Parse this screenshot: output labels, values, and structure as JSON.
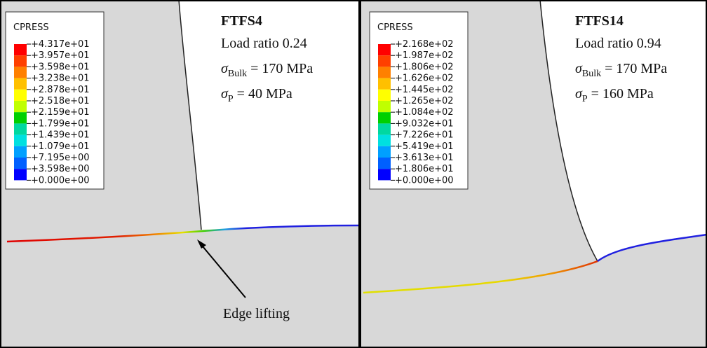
{
  "panels": [
    {
      "legend_title": "CPRESS",
      "legend_labels": [
        "+4.317e+01",
        "+3.957e+01",
        "+3.598e+01",
        "+3.238e+01",
        "+2.878e+01",
        "+2.518e+01",
        "+2.159e+01",
        "+1.799e+01",
        "+1.439e+01",
        "+1.079e+01",
        "+7.195e+00",
        "+3.598e+00",
        "+0.000e+00"
      ],
      "title": "FTFS4",
      "load_ratio": "Load ratio 0.24",
      "sigma_bulk": {
        "symbol": "σ",
        "subscript": "Bulk",
        "rest": " = 170 MPa"
      },
      "sigma_p": {
        "symbol": "σ",
        "subscript": "P",
        "rest": " = 40 MPa"
      },
      "annotation": "Edge lifting"
    },
    {
      "legend_title": "CPRESS",
      "legend_labels": [
        "+2.168e+02",
        "+1.987e+02",
        "+1.806e+02",
        "+1.626e+02",
        "+1.445e+02",
        "+1.265e+02",
        "+1.084e+02",
        "+9.032e+01",
        "+7.226e+01",
        "+5.419e+01",
        "+3.613e+01",
        "+1.806e+01",
        "+0.000e+00"
      ],
      "title": "FTFS14",
      "load_ratio": "Load ratio 0.94",
      "sigma_bulk": {
        "symbol": "σ",
        "subscript": "Bulk",
        "rest": " = 170 MPa"
      },
      "sigma_p": {
        "symbol": "σ",
        "subscript": "P",
        "rest": " = 160 MPa"
      }
    }
  ]
}
